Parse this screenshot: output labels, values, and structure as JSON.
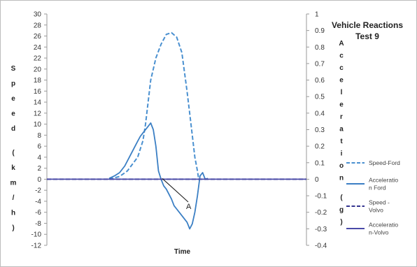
{
  "chart_data": {
    "type": "line",
    "title": [
      "Vehicle Reactions",
      "Test 9"
    ],
    "xlabel": "Time",
    "ylabel": "Speed (km/h)",
    "y2label": "Acceleration (g)",
    "ylim": [
      -12,
      30
    ],
    "y2lim": [
      -0.4,
      1.0
    ],
    "xlim": [
      0,
      100
    ],
    "yticks": [
      "30",
      "28",
      "26",
      "24",
      "22",
      "20",
      "18",
      "16",
      "14",
      "12",
      "10",
      "8",
      "6",
      "4",
      "2",
      "0",
      "-2",
      "-4",
      "-6",
      "-8",
      "-10",
      "-12"
    ],
    "y2ticks": [
      "1",
      "0.9",
      "0.8",
      "0.7",
      "0.6",
      "0.5",
      "0.4",
      "0.3",
      "0.2",
      "0.1",
      "0",
      "-0.1",
      "-0.2",
      "-0.3",
      "-0.4"
    ],
    "grid": false,
    "legend_position": "right",
    "annotation": {
      "text": "A"
    },
    "series": [
      {
        "name": "Speed-Ford",
        "axis": "left",
        "style": "dashed",
        "color": "#4a90d0",
        "x": [
          24,
          28,
          31,
          35,
          37,
          38,
          39,
          40,
          42,
          44,
          46,
          48,
          50,
          52,
          54,
          55,
          56,
          57,
          58,
          58.5
        ],
        "y": [
          0,
          0.5,
          1.5,
          4,
          7,
          10,
          14,
          18,
          22,
          24.5,
          26.3,
          26.6,
          25.8,
          23,
          16,
          12,
          8,
          4,
          1.5,
          0
        ]
      },
      {
        "name": "Acceleration Ford",
        "axis": "right",
        "style": "solid",
        "color": "#3b7fc4",
        "x": [
          24,
          26,
          28,
          30,
          32,
          33,
          34,
          35,
          36,
          37,
          37.5,
          38,
          39,
          40,
          41,
          42,
          43,
          44,
          45,
          46,
          47,
          48,
          49,
          50,
          51,
          52,
          53,
          54,
          54.5,
          55,
          56,
          57,
          58,
          59,
          60,
          61,
          62
        ],
        "y": [
          0.005,
          0.02,
          0.04,
          0.08,
          0.14,
          0.17,
          0.2,
          0.23,
          0.26,
          0.28,
          0.29,
          0.3,
          0.32,
          0.34,
          0.3,
          0.2,
          0.05,
          0,
          -0.04,
          -0.06,
          -0.09,
          -0.12,
          -0.16,
          -0.18,
          -0.2,
          -0.22,
          -0.24,
          -0.26,
          -0.28,
          -0.3,
          -0.27,
          -0.2,
          -0.1,
          0.02,
          0.04,
          0,
          0.005
        ]
      },
      {
        "name": "Speed - Volvo",
        "axis": "left",
        "style": "dashed",
        "color": "#34348f",
        "x": [
          0,
          100
        ],
        "y": [
          0,
          0
        ]
      },
      {
        "name": "Acceleratio n-Volvo",
        "axis": "right",
        "style": "solid",
        "color": "#4a4aa8",
        "x": [
          0,
          100
        ],
        "y": [
          0,
          0
        ]
      }
    ],
    "legend": [
      {
        "label_lines": [
          "Speed-Ford"
        ],
        "style": "dashed",
        "color": "#4a90d0"
      },
      {
        "label_lines": [
          "Acceleratio",
          "n Ford"
        ],
        "style": "solid",
        "color": "#3b7fc4"
      },
      {
        "label_lines": [
          "Speed -",
          "Volvo"
        ],
        "style": "dashed",
        "color": "#34348f"
      },
      {
        "label_lines": [
          "Acceleratio",
          "n-Volvo"
        ],
        "style": "solid",
        "color": "#4a4aa8"
      }
    ]
  }
}
